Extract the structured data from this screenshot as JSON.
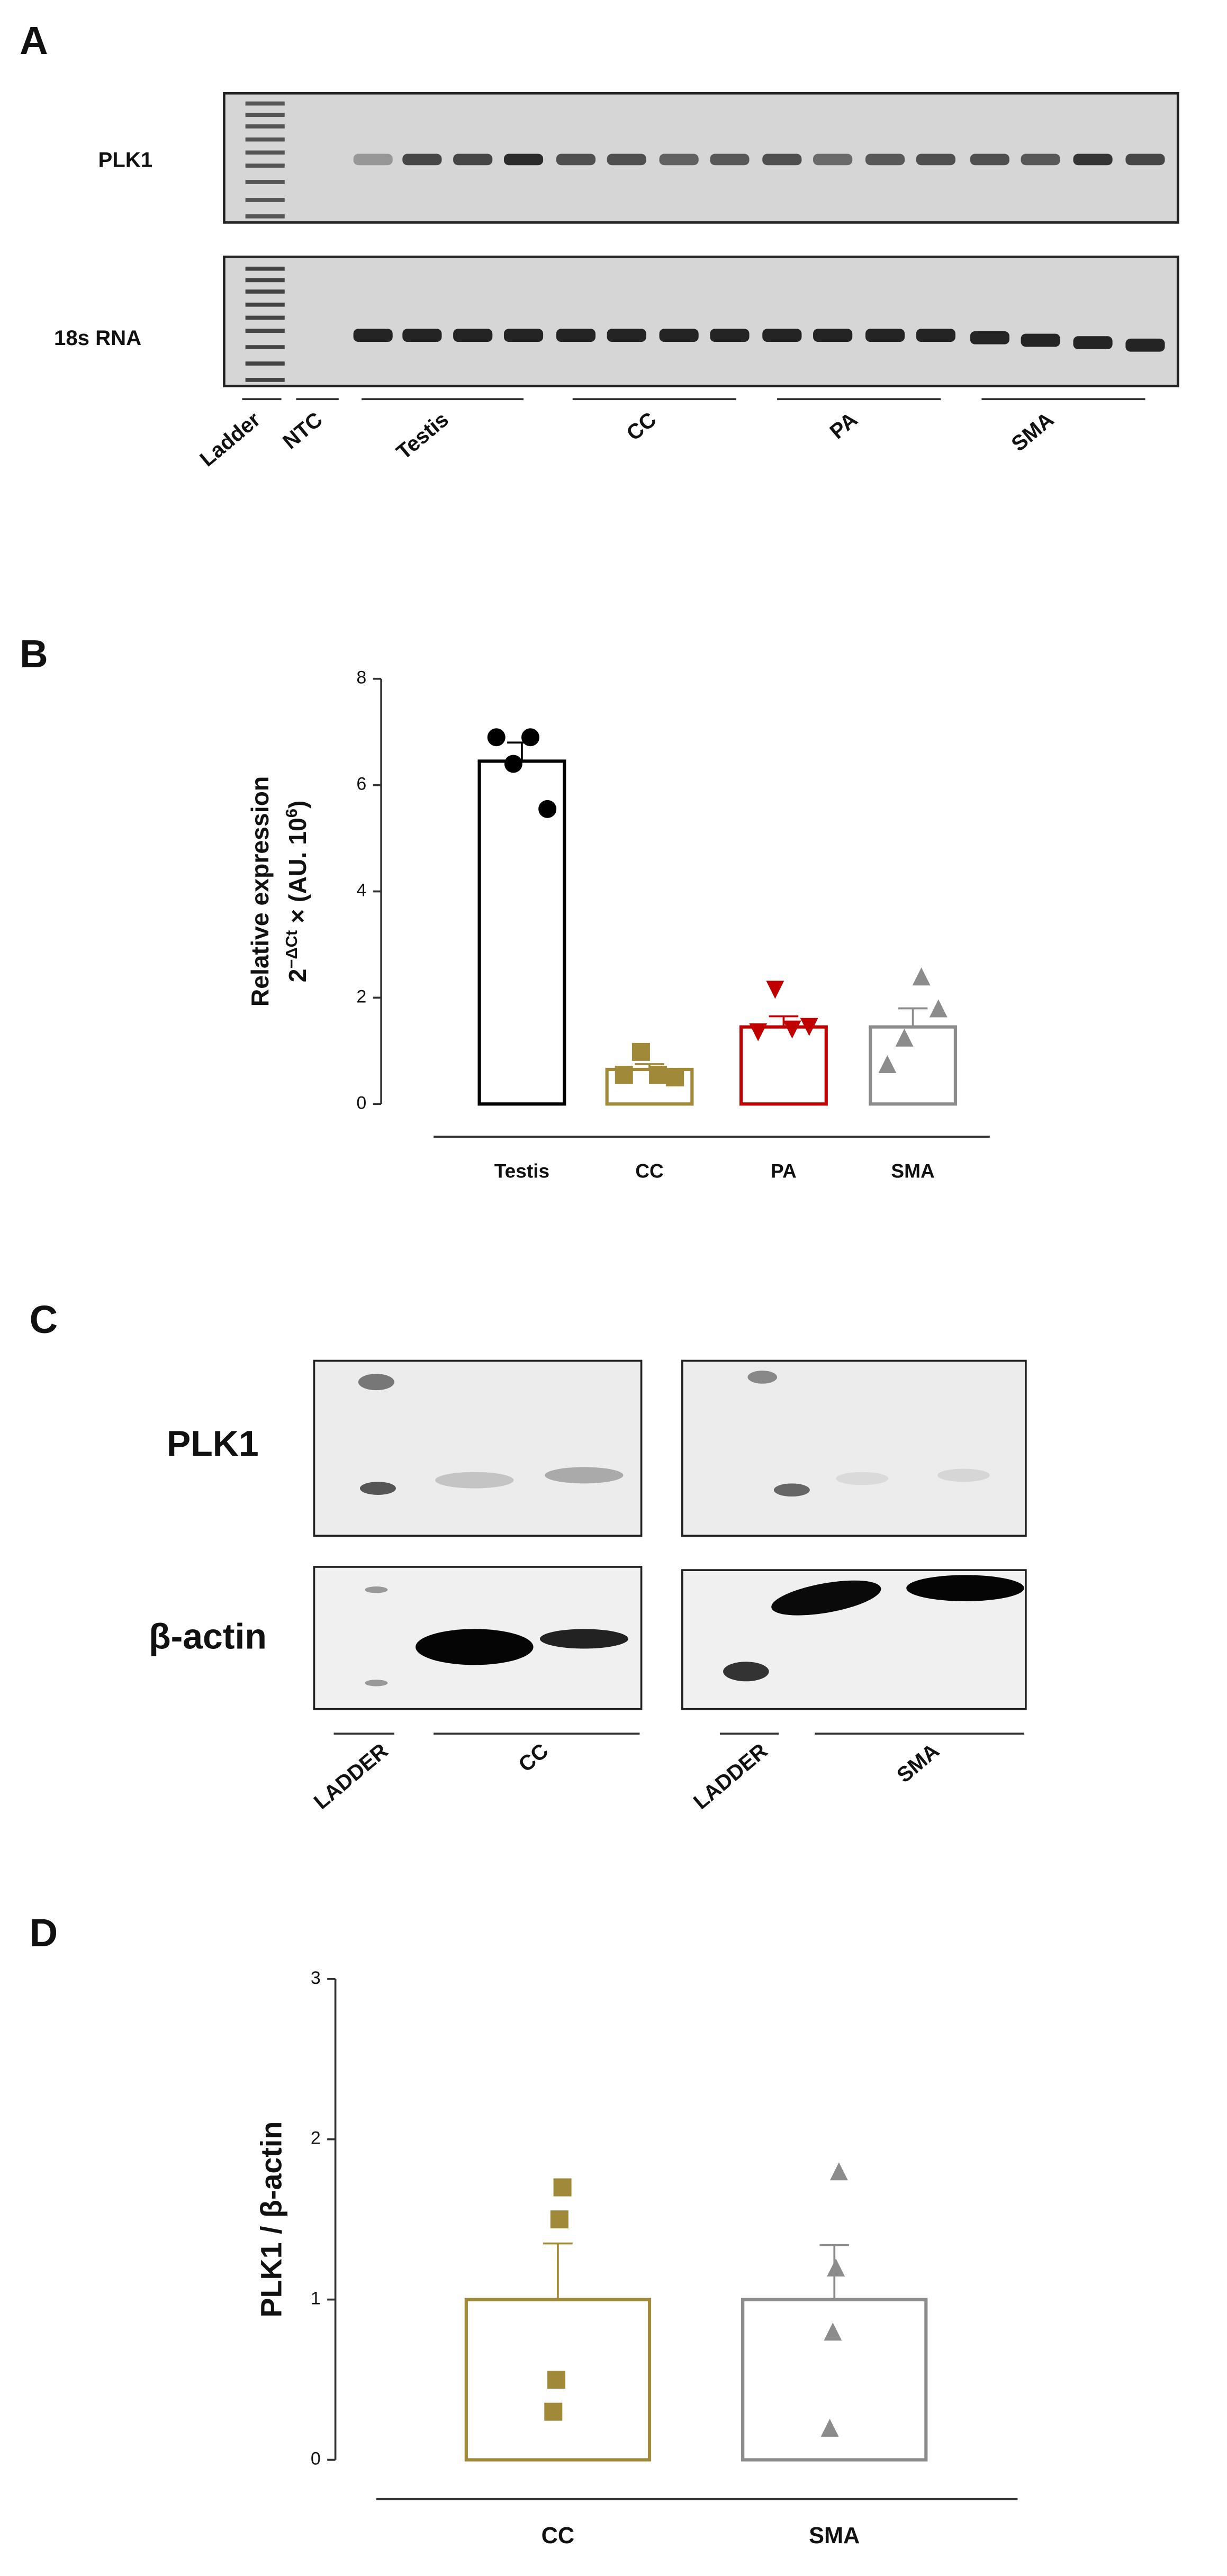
{
  "panel_labels": [
    "A",
    "B",
    "C",
    "D"
  ],
  "gel_a": {
    "rows": [
      "PLK1",
      "18s RNA"
    ],
    "lanes": [
      "Ladder",
      "NTC",
      "Testis",
      "CC",
      "PA",
      "SMA"
    ]
  },
  "gel_c": {
    "rows": [
      "PLK1",
      "β-actin"
    ],
    "lanes": [
      "LADDER",
      "CC",
      "LADDER",
      "SMA"
    ]
  },
  "chart_data": [
    {
      "type": "bar",
      "y_label": "Relative expression",
      "y_label_2": [
        "2",
        "−ΔCt",
        " × (AU. 10",
        "6",
        ")"
      ],
      "categories": [
        "Testis",
        "CC",
        "PA",
        "SMA"
      ],
      "values": [
        6.45,
        0.65,
        1.45,
        1.45
      ],
      "errors": [
        0.35,
        0.1,
        0.2,
        0.35
      ],
      "points": [
        [
          6.9,
          6.4,
          6.9,
          5.55
        ],
        [
          0.55,
          0.98,
          0.55,
          0.5
        ],
        [
          1.35,
          2.15,
          1.4,
          1.45
        ],
        [
          0.75,
          1.25,
          2.4,
          1.8
        ]
      ],
      "colors": [
        "#000000",
        "#a08a3a",
        "#c00000",
        "#8c8c8c"
      ],
      "markers": [
        "circle",
        "square",
        "triangle-down",
        "triangle"
      ],
      "ylim": [
        0,
        8
      ],
      "yticks": [
        0,
        2,
        4,
        6,
        8
      ]
    },
    {
      "type": "bar",
      "y_label": "PLK1 / β-actin",
      "categories": [
        "CC",
        "SMA"
      ],
      "values": [
        1.0,
        1.0
      ],
      "errors": [
        0.35,
        0.34
      ],
      "points": [
        [
          0.3,
          0.5,
          1.5,
          1.7
        ],
        [
          0.2,
          0.8,
          1.2,
          1.8
        ]
      ],
      "colors": [
        "#a08a3a",
        "#8c8c8c"
      ],
      "markers": [
        "square",
        "triangle"
      ],
      "ylim": [
        0,
        3
      ],
      "yticks": [
        0,
        1,
        2,
        3
      ]
    }
  ]
}
